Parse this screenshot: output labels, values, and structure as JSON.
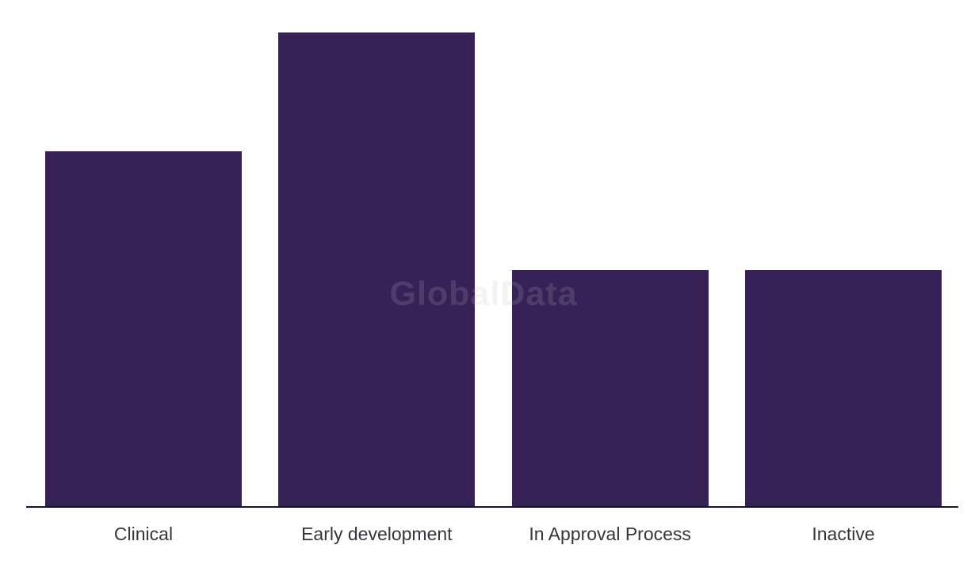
{
  "watermark": {
    "text": "GlobalData"
  },
  "colors": {
    "bar": "#362257",
    "axis_line": "#151529",
    "label_text": "#36363a",
    "background": "#ffffff"
  },
  "chart_data": {
    "type": "bar",
    "categories": [
      "Clinical",
      "Early development",
      "In Approval Process",
      "Inactive"
    ],
    "values": [
      3,
      4,
      2,
      2
    ],
    "title": "",
    "xlabel": "",
    "ylabel": "",
    "ylim": [
      0,
      4
    ],
    "grid": false,
    "legend": false,
    "y_axis_shown": false,
    "x_axis_line": true,
    "bar_color": "#362257",
    "watermark_text": "GlobalData"
  }
}
